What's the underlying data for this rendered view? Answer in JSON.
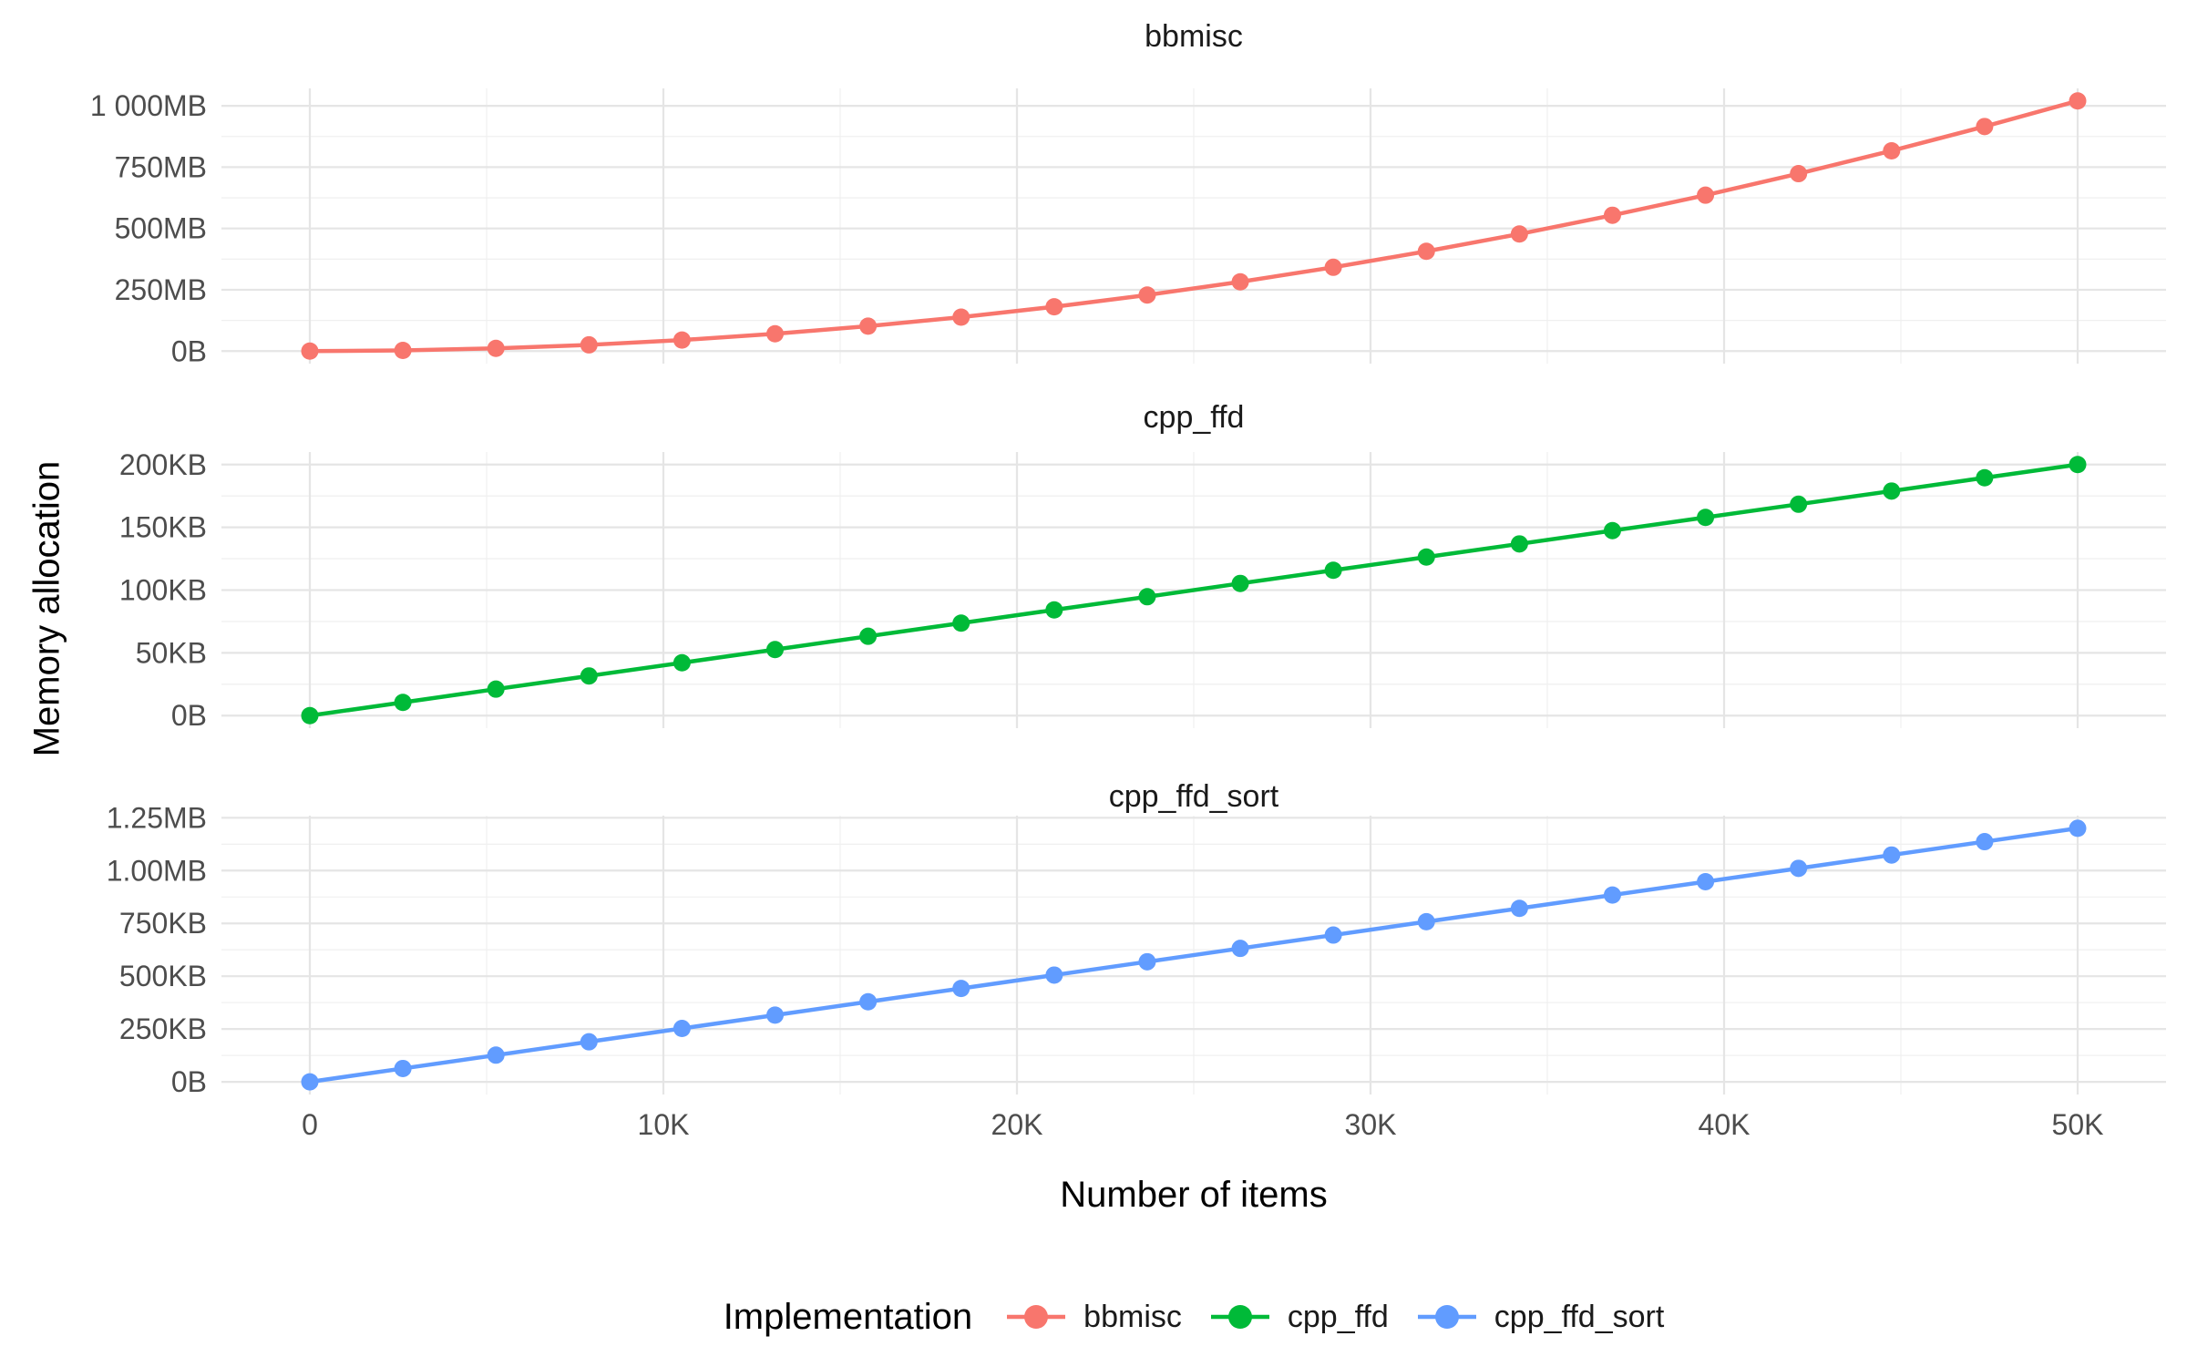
{
  "figure": {
    "background": "#FFFFFF"
  },
  "chart_data": {
    "type": "line",
    "title": "",
    "y_label": "Memory allocation",
    "x_label": "Number of items",
    "layout": "three vertically stacked facet panels sharing one x axis",
    "grid": {
      "major": true,
      "minor": true
    },
    "x": [
      0,
      2632,
      5263,
      7895,
      10526,
      13158,
      15789,
      18421,
      21053,
      23684,
      26316,
      28947,
      31579,
      34211,
      36842,
      39474,
      42105,
      44737,
      47368,
      50000
    ],
    "x_axis": {
      "title": "Number of items",
      "range": [
        -2500,
        52500
      ],
      "ticks": [
        0,
        10000,
        20000,
        30000,
        40000,
        50000
      ],
      "tick_labels": [
        "0",
        "10K",
        "20K",
        "30K",
        "40K",
        "50K"
      ],
      "minor_ticks": [
        5000,
        15000,
        25000,
        35000,
        45000
      ]
    },
    "legend": {
      "title": "Implementation",
      "position": "bottom",
      "entries": [
        "bbmisc",
        "cpp_ffd",
        "cpp_ffd_sort"
      ]
    },
    "facets": [
      {
        "title": "bbmisc",
        "series": "bbmisc",
        "color": "#F8766D",
        "unit": "MB",
        "values": [
          0,
          2.8,
          11.3,
          25.4,
          45.2,
          70.6,
          101.7,
          138.4,
          180.7,
          228.7,
          282.5,
          341.7,
          406.8,
          477.4,
          553.8,
          635.7,
          723.4,
          816.6,
          915.6,
          1020
        ],
        "y_range": [
          -51,
          1071
        ],
        "y_ticks": [
          0,
          250,
          500,
          750,
          1000
        ],
        "y_tick_labels": [
          "0B",
          "250MB",
          "500MB",
          "750MB",
          "1 000MB"
        ],
        "y_minor_ticks": [
          125,
          375,
          625,
          875
        ]
      },
      {
        "title": "cpp_ffd",
        "series": "cpp_ffd",
        "color": "#00BA38",
        "unit": "KB",
        "values": [
          0,
          10.5,
          21.1,
          31.6,
          42.1,
          52.6,
          63.2,
          73.7,
          84.2,
          94.7,
          105.3,
          115.8,
          126.3,
          136.8,
          147.4,
          157.9,
          168.4,
          178.9,
          189.5,
          200
        ],
        "y_range": [
          -10,
          210
        ],
        "y_ticks": [
          0,
          50,
          100,
          150,
          200
        ],
        "y_tick_labels": [
          "0B",
          "50KB",
          "100KB",
          "150KB",
          "200KB"
        ],
        "y_minor_ticks": [
          25,
          75,
          125,
          175
        ]
      },
      {
        "title": "cpp_ffd_sort",
        "series": "cpp_ffd_sort",
        "color": "#619CFF",
        "unit": "KB",
        "values": [
          0,
          63.2,
          126.3,
          189.5,
          252.6,
          315.8,
          378.9,
          442.1,
          505.3,
          568.4,
          631.6,
          694.7,
          757.9,
          821.1,
          884.2,
          947.4,
          1010.5,
          1073.7,
          1136.8,
          1200
        ],
        "y_range": [
          -60,
          1260
        ],
        "y_ticks": [
          0,
          250,
          500,
          750,
          1000,
          1250
        ],
        "y_tick_labels": [
          "0B",
          "250KB",
          "500KB",
          "750KB",
          "1.00MB",
          "1.25MB"
        ],
        "y_minor_ticks": [
          125,
          375,
          625,
          875,
          1125
        ]
      }
    ],
    "styles": {
      "grid_major_color": "#E5E5E5",
      "grid_minor_color": "#F0F0F0",
      "tick_text_color": "#4D4D4D",
      "title_text_color": "#000000",
      "strip_text_color": "#1A1A1A",
      "background": "#FFFFFF"
    }
  }
}
